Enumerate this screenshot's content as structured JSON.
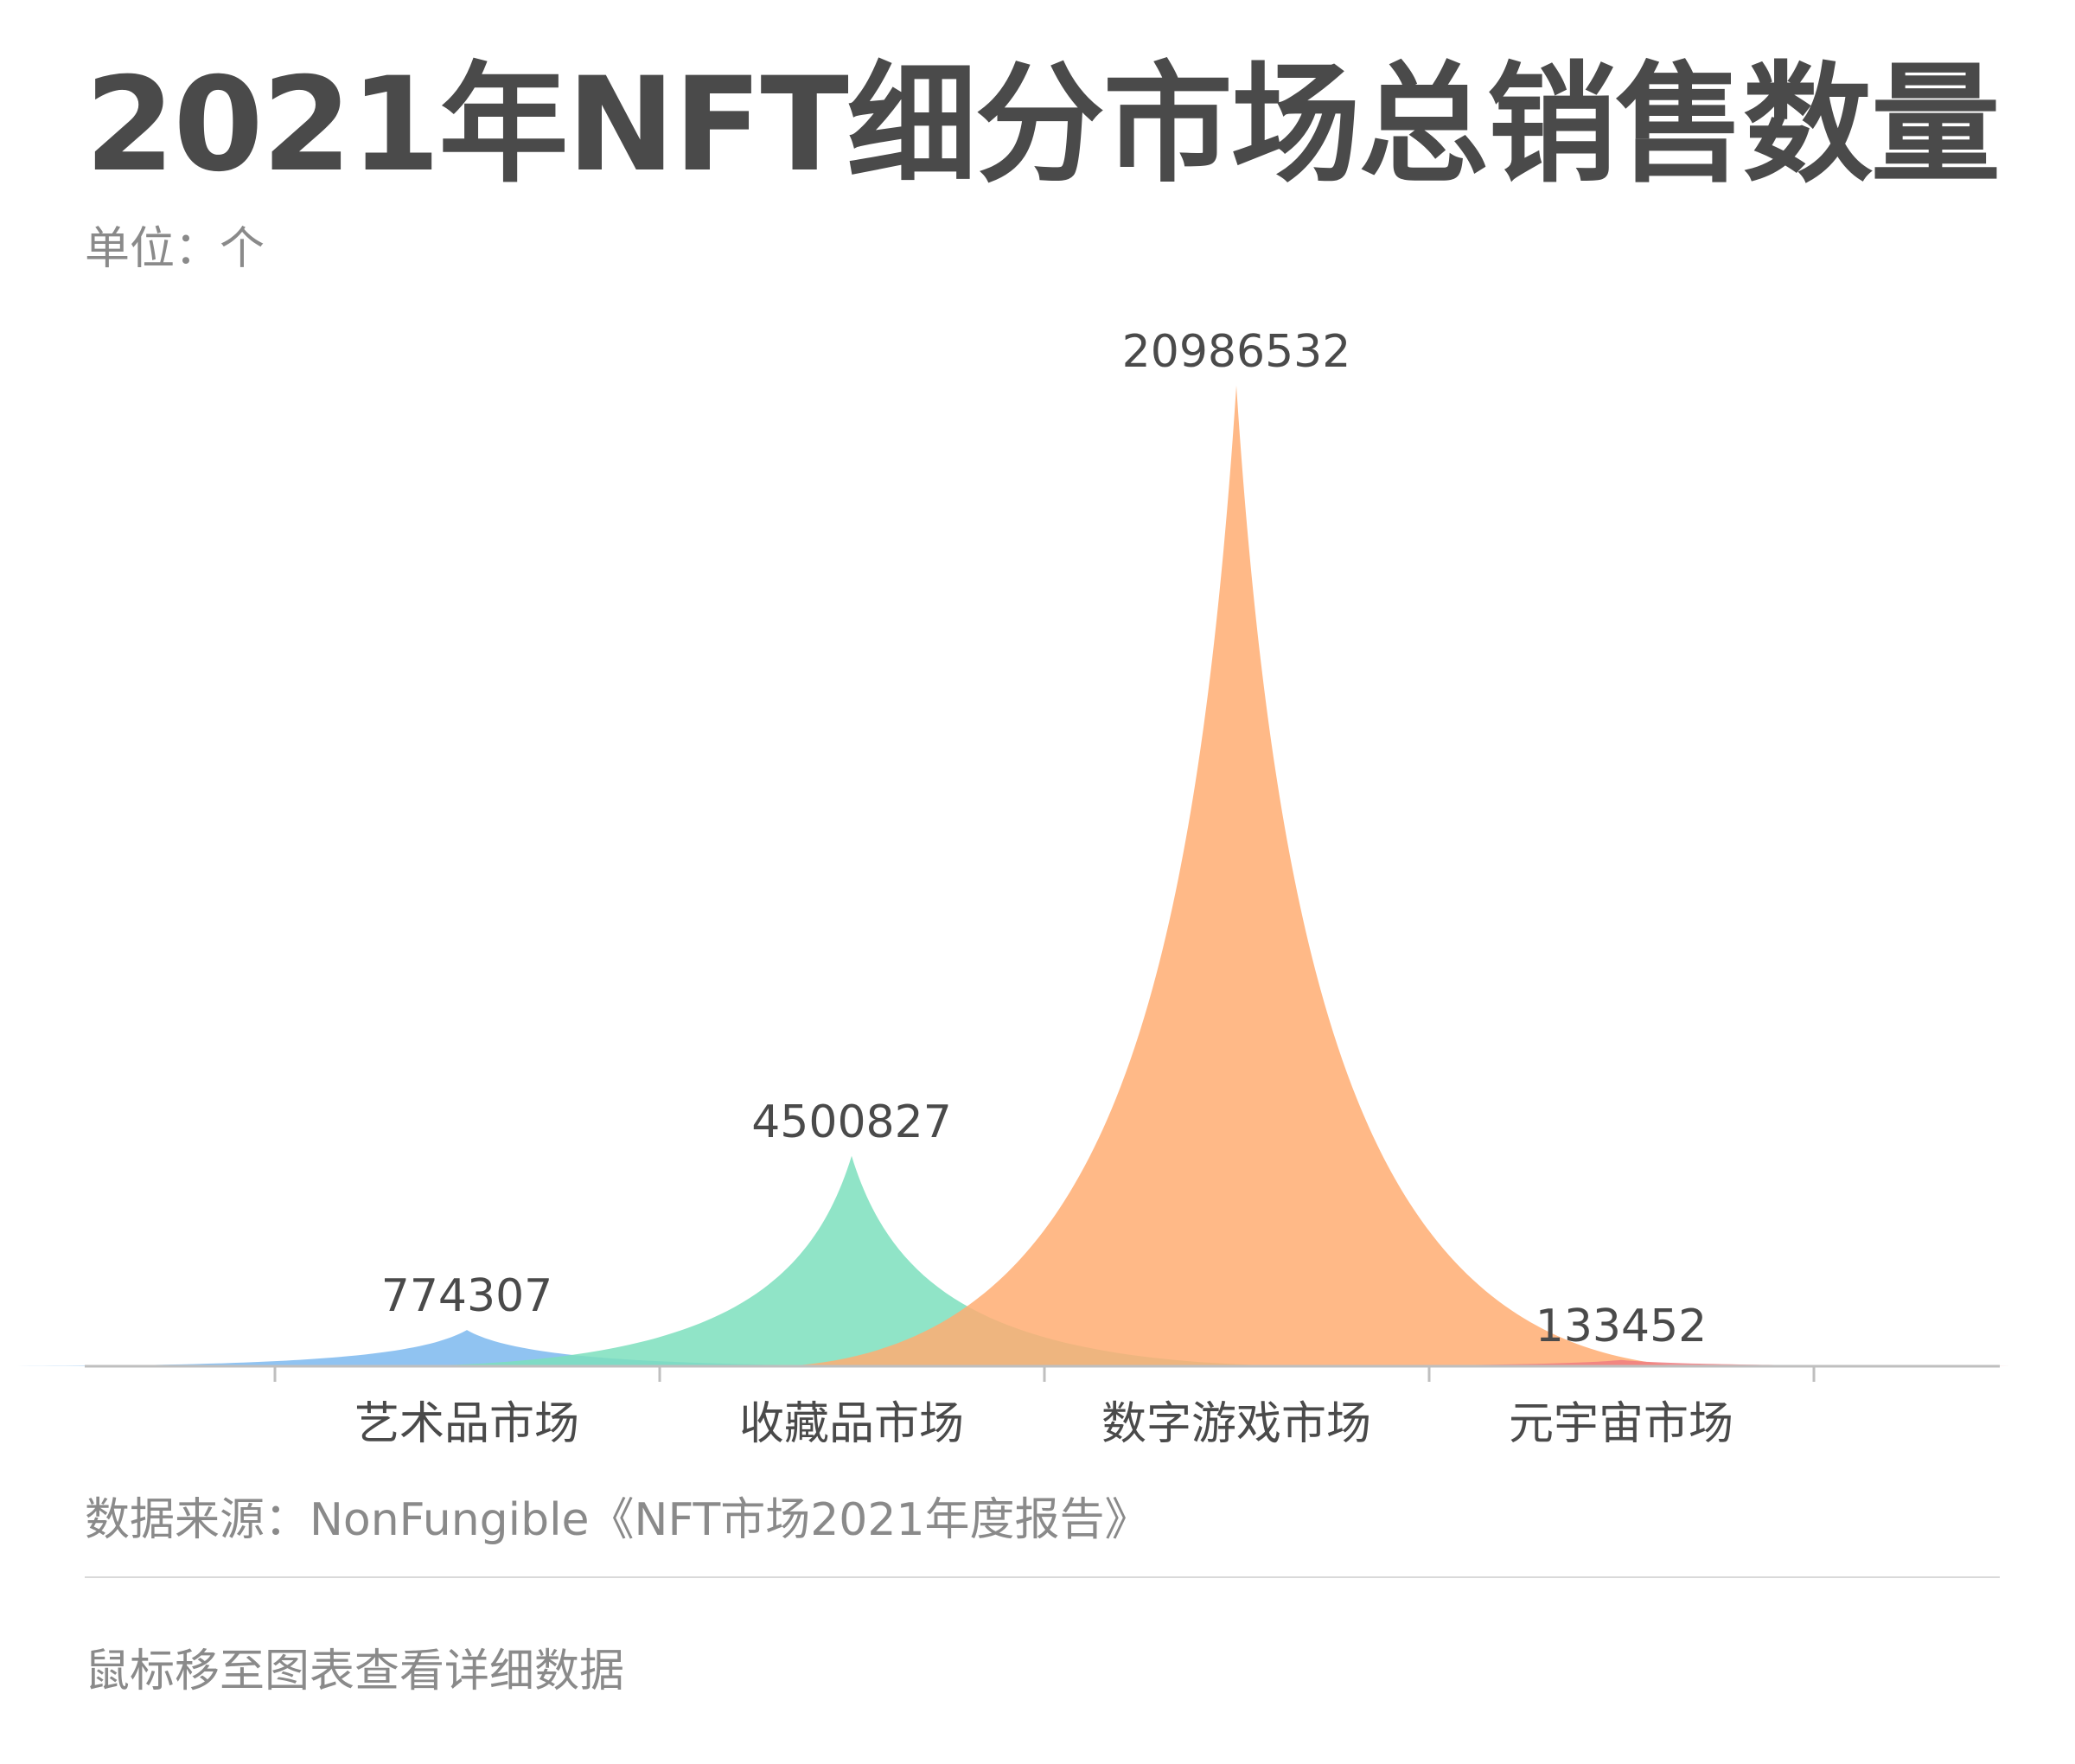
{
  "header": {
    "title": "2021年NFT细分市场总销售数量",
    "unit_label": "单位：个"
  },
  "chart_data": {
    "type": "area",
    "title": "2021年NFT细分市场总销售数量",
    "unit": "单位：个",
    "categories": [
      "艺术品市场",
      "收藏品市场",
      "数字游戏市场",
      "元宇宙市场"
    ],
    "values": [
      774307,
      4500827,
      20986532,
      133452
    ],
    "value_labels": [
      "774307",
      "4500827",
      "20986532",
      "133452"
    ],
    "colors": [
      "#7cb9ef",
      "#7ddfbd",
      "#ffad72",
      "#f07c80"
    ],
    "ylim": [
      0,
      20986532
    ],
    "grid": false,
    "legend": "none"
  },
  "footer": {
    "source": "数据来源：NonFungible《NFT市场2021年度报告》",
    "hint": "鼠标移至图表查看详细数据"
  }
}
